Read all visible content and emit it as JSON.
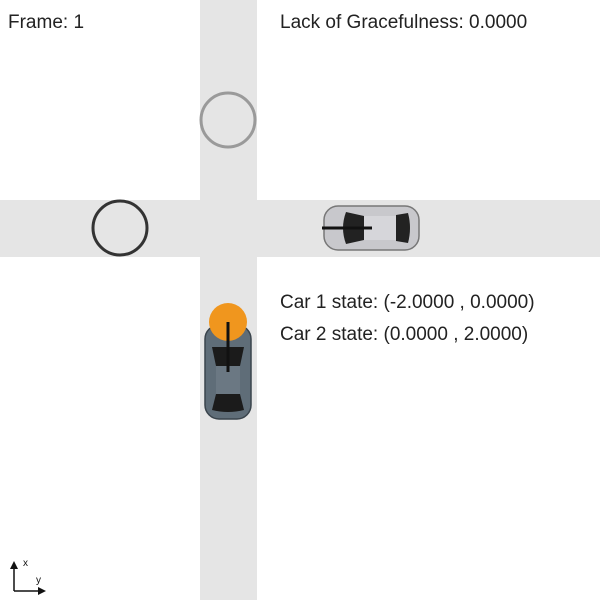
{
  "hud": {
    "frame": "Frame: 1",
    "gracefulness": "Lack of Gracefulness: 0.0000",
    "car1_state": "Car 1 state: (-2.0000 , 0.0000)",
    "car2_state": "Car 2 state: (0.0000 , 2.0000)"
  },
  "axes": {
    "x_label": "x",
    "y_label": "y"
  },
  "colors": {
    "road": "#e5e5e5",
    "car1_body": "#5f6d78",
    "car2_body": "#c8c8cc",
    "car1_marker": "#f0961e",
    "goal_car1": "#9a9a9a",
    "goal_car2": "#333333",
    "heading_line": "#111111"
  }
}
